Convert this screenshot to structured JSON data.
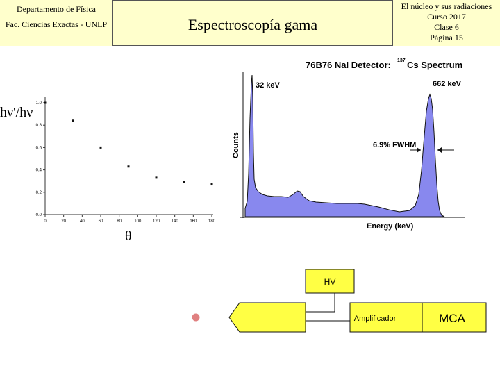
{
  "header": {
    "left_line1": "Departamento de Física",
    "left_line2": "Fac. Ciencias Exactas - UNLP",
    "title": "Espectroscopía gama",
    "right_line1": "El núcleo y sus radiaciones",
    "right_line2": "Curso 2017",
    "right_line3": "Clase 6",
    "right_line4": "Página 15"
  },
  "chart_data": [
    {
      "type": "scatter",
      "title": "",
      "xlabel": "θ",
      "ylabel": "hν'/hν",
      "xlim": [
        0,
        180
      ],
      "ylim": [
        0.0,
        1.0
      ],
      "x_ticks": [
        "0",
        "20",
        "40",
        "60",
        "80",
        "100",
        "120",
        "140",
        "160",
        "180"
      ],
      "y_ticks": [
        "0.0",
        "0.2",
        "0.4",
        "0.6",
        "0.8",
        "1.0"
      ],
      "x": [
        0,
        30,
        60,
        90,
        120,
        150,
        180
      ],
      "y": [
        1.0,
        0.84,
        0.6,
        0.43,
        0.33,
        0.29,
        0.27
      ]
    },
    {
      "type": "area",
      "title": "76B76 NaI Detector:",
      "title_isotope_mass": "137",
      "title_isotope": "Cs Spectrum",
      "xlabel": "Energy (keV)",
      "ylabel": "Counts",
      "annotations": [
        "32 keV",
        "662 keV",
        "6.9% FWHM"
      ]
    }
  ],
  "diagram": {
    "hv_label": "HV",
    "amp_label": "Amplificador",
    "mca_label": "MCA"
  },
  "colors": {
    "header_bg": "#ffffcc",
    "spectrum_fill": "#8888ee",
    "box_fill": "#ffff44",
    "source_dot": "#e08080"
  }
}
